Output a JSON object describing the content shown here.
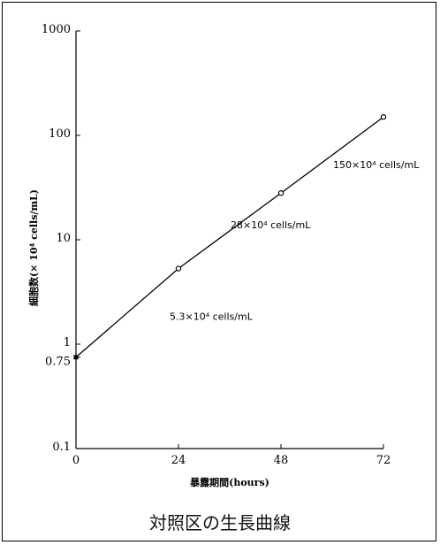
{
  "caption": "対照区の生長曲線",
  "chart_data": {
    "type": "line",
    "xlabel": "暴露期間(hours)",
    "ylabel": "細胞数(× 10⁴ cells/mL)",
    "yscale": "log",
    "xlim": [
      0,
      72
    ],
    "ylim": [
      0.1,
      1000
    ],
    "x_ticks": [
      0,
      24,
      48,
      72
    ],
    "x_tick_labels": [
      "0",
      "24",
      "48",
      "72"
    ],
    "y_ticks": [
      0.1,
      0.75,
      1,
      10,
      100,
      1000
    ],
    "y_tick_labels": [
      "0.1",
      "0.75",
      "1",
      "10",
      "100",
      "1000"
    ],
    "grid": false,
    "series": [
      {
        "x": [
          0,
          24,
          48,
          72
        ],
        "y": [
          0.75,
          5.3,
          28,
          150
        ]
      }
    ],
    "annotations": [
      {
        "text": "5.3×10⁴ cells/mL",
        "x": 24,
        "y": 5.3
      },
      {
        "text": "28×10⁴ cells/mL",
        "x": 48,
        "y": 28
      },
      {
        "text": "150×10⁴ cells/mL",
        "x": 72,
        "y": 150
      }
    ],
    "colors": {
      "line": "#000000",
      "marker": "#000000"
    }
  }
}
